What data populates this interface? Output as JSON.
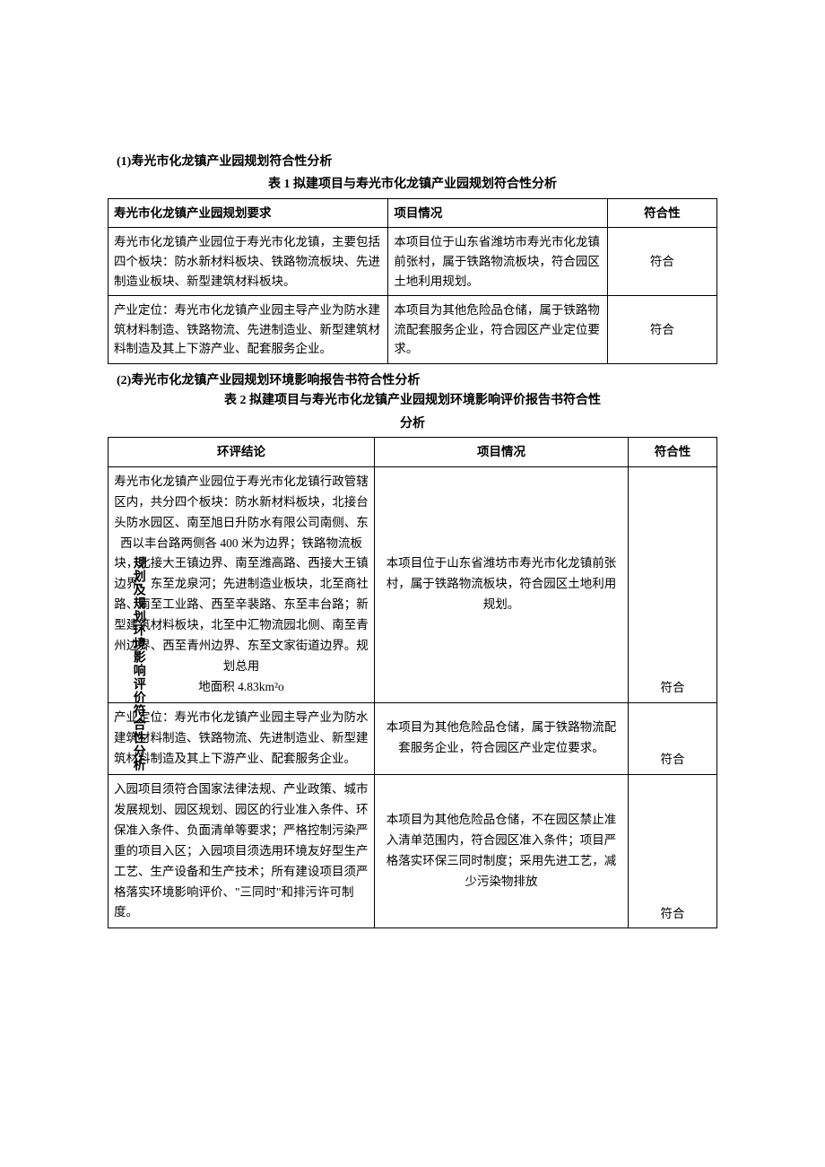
{
  "vertical_label": "规划及规划环境影响评价符合性分析",
  "section1": {
    "title": "(1)寿光市化龙镇产业园规划符合性分析",
    "table_title": "表 1 拟建项目与寿光市化龙镇产业园规划符合性分析",
    "headers": {
      "col1": "寿光市化龙镇产业园规划要求",
      "col2": "项目情况",
      "col3": "符合性"
    },
    "rows": [
      {
        "req": "寿光市化龙镇产业园位于寿光市化龙镇，主要包括四个板块：防水新材料板块、铁路物流板块、先进制造业板块、新型建筑材料板块。",
        "status": "本项目位于山东省潍坊市寿光市化龙镇前张村，属于铁路物流板块，符合园区土地利用规划。",
        "compliance": "符合"
      },
      {
        "req": "产业定位：寿光市化龙镇产业园主导产业为防水建筑材料制造、铁路物流、先进制造业、新型建筑材料制造及其上下游产业、配套服务企业。",
        "status": "本项目为其他危险品仓储，属于铁路物流配套服务企业，符合园区产业定位要求。",
        "compliance": "符合"
      }
    ]
  },
  "section2": {
    "title": "(2)寿光市化龙镇产业园规划环境影响报告书符合性分析",
    "table_title_l1": "表 2 拟建项目与寿光市化龙镇产业园规划环境影响评价报告书符合性",
    "table_title_l2": "分析",
    "headers": {
      "col1": "环评结论",
      "col2": "项目情况",
      "col3": "符合性"
    },
    "rows": [
      {
        "req": "寿光市化龙镇产业园位于寿光市化龙镇行政管辖区内，共分四个板块：防水新材料板块，北接台头防水园区、南至旭日升防水有限公司南侧、东西以丰台路两侧各 400 米为边界；铁路物流板块，北接大王镇边界、南至潍高路、西接大王镇边界、东至龙泉河；先进制造业板块，北至商社路、南至工业路、西至辛裴路、东至丰台路；新型建筑材料板块，北至中汇物流园北侧、南至青州边界、西至青州边界、东至文家街道边界。规划总用",
        "req_line2": "地面积 4.83km²o",
        "status": "本项目位于山东省潍坊市寿光市化龙镇前张村，属于铁路物流板块，符合园区土地利用规划。",
        "compliance": "符合"
      },
      {
        "req": "产业定位：寿光市化龙镇产业园主导产业为防水建筑材料制造、铁路物流、先进制造业、新型建筑材料制造及其上下游产业、配套服务企业。",
        "status": "本项目为其他危险品仓储，属于铁路物流配套服务企业，符合园区产业定位要求。",
        "compliance": "符合"
      },
      {
        "req": "入园项目须符合国家法律法规、产业政策、城市发展规划、园区规划、园区的行业准入条件、环保准入条件、负面清单等要求；严格控制污染严重的项目入区；入园项目须选用环境友好型生产工艺、生产设备和生产技术；所有建设项目须严格落实环境影响评价、\"三同时\"和排污许可制度。",
        "status": "本项目为其他危险品仓储，不在园区禁止准入清单范围内，符合园区准入条件；项目严格落实环保三同时制度；采用先进工艺，减少污染物排放",
        "compliance": "符合"
      }
    ]
  }
}
